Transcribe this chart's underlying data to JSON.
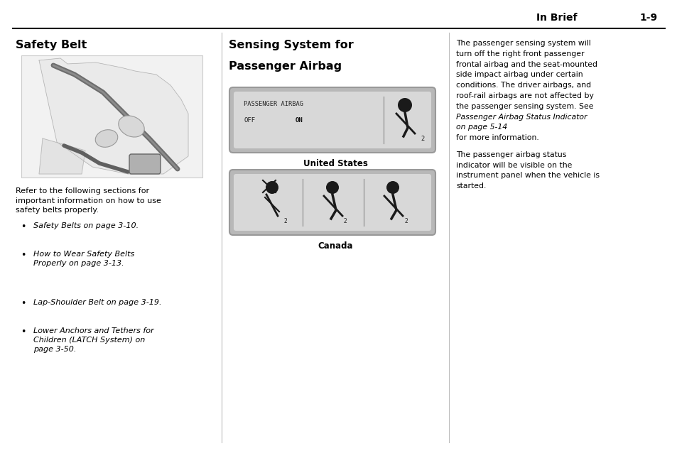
{
  "background_color": "#ffffff",
  "page_width": 9.54,
  "page_height": 6.38,
  "header_text_left": "In Brief",
  "header_text_right": "1-9",
  "col1_title": "Safety Belt",
  "col1_para1": "Refer to the following sections for\nimportant information on how to use\nsafety belts properly.",
  "col1_bullets": [
    "Safety Belts on page 3-10.",
    "How to Wear Safety Belts\nProperly on page 3-13.",
    "Lap-Shoulder Belt on page 3-19.",
    "Lower Anchors and Tethers for\nChildren (LATCH System) on\npage 3-50."
  ],
  "col2_title_line1": "Sensing System for",
  "col2_title_line2": "Passenger Airbag",
  "col2_label1": "United States",
  "col2_label2": "Canada",
  "col3_para1_normal": "The passenger sensing system will\nturn off the right front passenger\nfrontal airbag and the seat-mounted\nside impact airbag under certain\nconditions. The driver airbags, and\nroof-rail airbags are not affected by\nthe passenger sensing system. See",
  "col3_para1_italic": "Passenger Airbag Status Indicator\non page 5-14",
  "col3_para1_end": " for more information.",
  "col3_para2": "The passenger airbag status\nindicator will be visible on the\ninstrument panel when the vehicle is\nstarted.",
  "divider_color": "#000000",
  "text_color": "#000000",
  "box_fill": "#d4d4d4",
  "box_edge": "#999999",
  "col_divider_color": "#bbbbbb"
}
